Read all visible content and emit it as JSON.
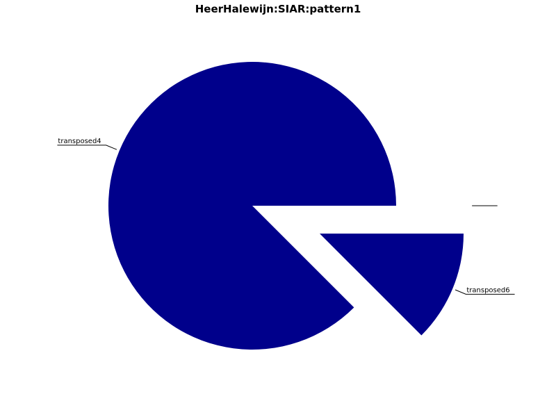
{
  "chart_data": {
    "type": "pie",
    "title": "HeerHalewijn:SIAR:pattern1",
    "slices": [
      {
        "label": "transposed4",
        "value": 87.5,
        "color": "#00008b",
        "exploded": false
      },
      {
        "label": "transposed6",
        "value": 12.5,
        "color": "#00008b",
        "exploded": true
      },
      {
        "label": "",
        "value": 0,
        "color": "#00008b",
        "exploded": true
      }
    ],
    "legend": "none"
  }
}
